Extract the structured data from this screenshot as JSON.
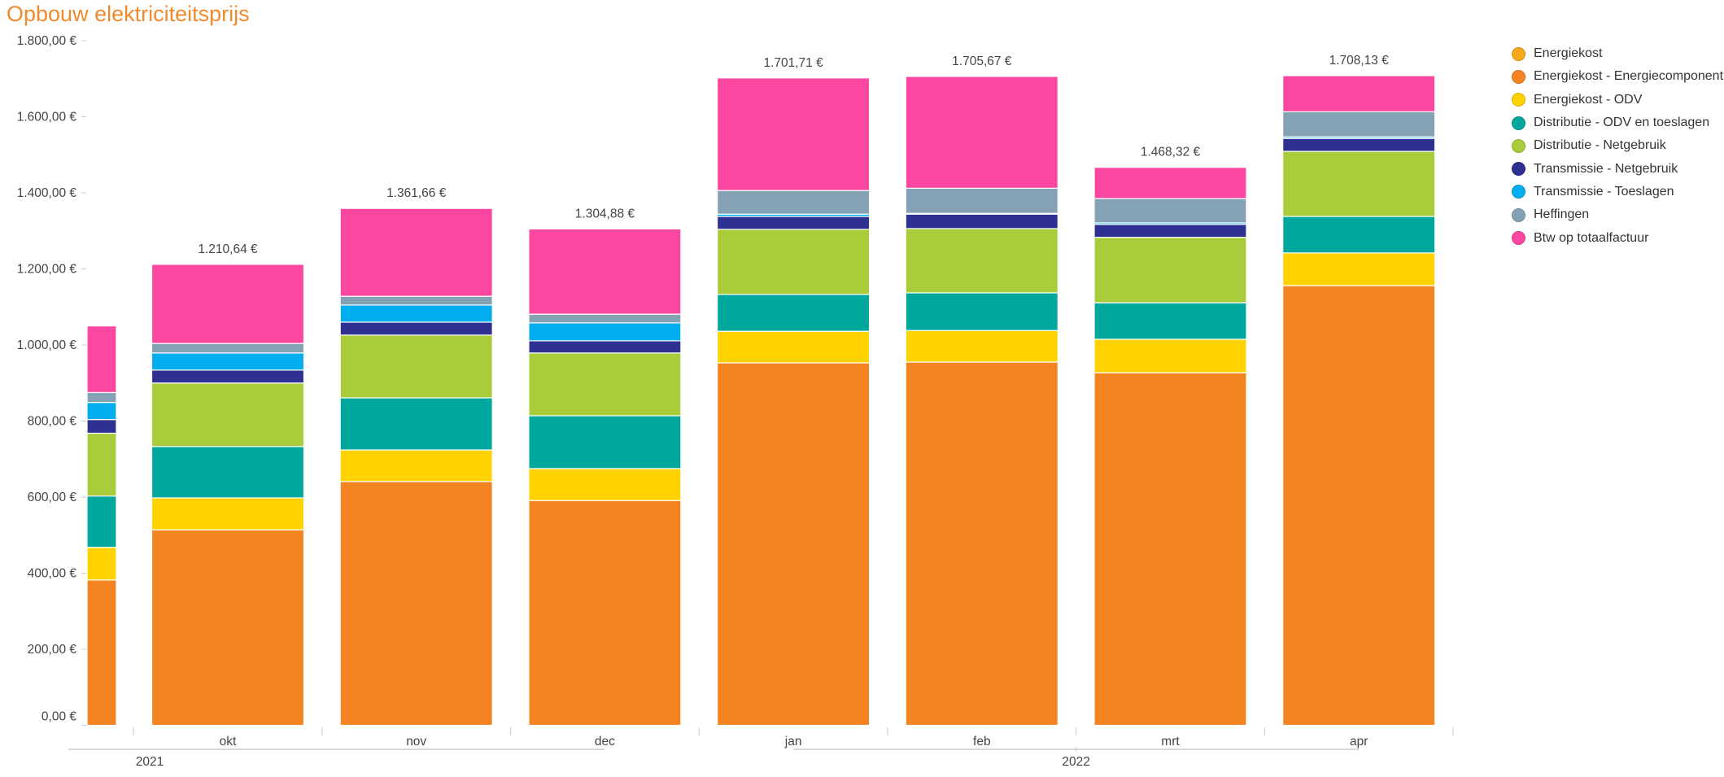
{
  "title": "Opbouw elektriciteitsprijs",
  "chart_data": {
    "type": "bar",
    "stacked": true,
    "title": "Opbouw elektriciteitsprijs",
    "xlabel": "",
    "ylabel": "",
    "ylim": [
      0,
      1800
    ],
    "yticks": [
      0,
      200,
      400,
      600,
      800,
      1000,
      1200,
      1400,
      1600,
      1800
    ],
    "ytick_labels": [
      "0,00 €",
      "200,00 €",
      "400,00 €",
      "600,00 €",
      "800,00 €",
      "1.000,00 €",
      "1.200,00 €",
      "1.400,00 €",
      "1.600,00 €",
      "1.800,00 €"
    ],
    "grid": false,
    "legend_position": "right",
    "categories": [
      "",
      "okt",
      "nov",
      "dec",
      "jan",
      "feb",
      "mrt",
      "apr"
    ],
    "year_groups": [
      {
        "label": "2021",
        "categories": [
          "",
          "okt",
          "nov",
          "dec"
        ]
      },
      {
        "label": "2022",
        "categories": [
          "jan",
          "feb",
          "mrt",
          "apr"
        ]
      }
    ],
    "totals_labels": [
      null,
      "1.210,64 €",
      "1.361,66 €",
      "1.304,88 €",
      "1.701,71 €",
      "1.705,67 €",
      "1.468,32 €",
      "1.708,13 €"
    ],
    "series": [
      {
        "name": "Energiekost",
        "color": "#F7A81B",
        "values": [
          0,
          0,
          0,
          0,
          0,
          0,
          0,
          0
        ]
      },
      {
        "name": "Energiekost - Energiecomponent",
        "color": "#F38421",
        "values": [
          382,
          514,
          641,
          591,
          953,
          955,
          927,
          1156
        ]
      },
      {
        "name": "Energiekost - ODV",
        "color": "#FFD200",
        "values": [
          86,
          84,
          83,
          84,
          83,
          83,
          88,
          86
        ]
      },
      {
        "name": "Distributie - ODV en toeslagen",
        "color": "#00A79D",
        "values": [
          135,
          135,
          137,
          139,
          97,
          99,
          96,
          96
        ]
      },
      {
        "name": "Distributie - Netgebruik",
        "color": "#A8CC3A",
        "values": [
          165,
          167,
          165,
          165,
          171,
          169,
          172,
          171
        ]
      },
      {
        "name": "Transmissie - Netgebruik",
        "color": "#2E3192",
        "values": [
          36,
          34,
          34,
          32,
          34,
          38,
          34,
          34
        ]
      },
      {
        "name": "Transmissie - Toeslagen",
        "color": "#00AEEF",
        "values": [
          45,
          45,
          45,
          47,
          6,
          2,
          4,
          4
        ]
      },
      {
        "name": "Heffingen",
        "color": "#84A2B3",
        "values": [
          26,
          25,
          23,
          23,
          62,
          66,
          64,
          66
        ]
      },
      {
        "name": "Btw op totaalfactuur",
        "color": "#FB47A0",
        "values": [
          175,
          208,
          231,
          224,
          296,
          294,
          82,
          95
        ]
      }
    ]
  }
}
